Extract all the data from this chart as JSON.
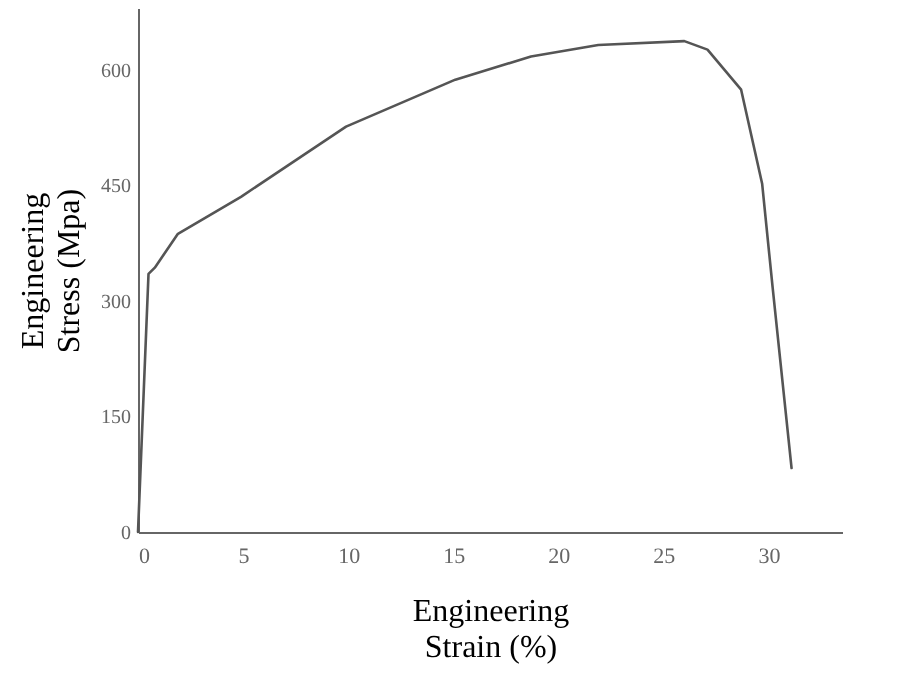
{
  "chart_data": {
    "type": "line",
    "xlabel": "Engineering Strain (%)",
    "ylabel": "Engineering Stress (Mpa)",
    "xlim": [
      0,
      33.5
    ],
    "ylim": [
      0,
      680
    ],
    "xticks": [
      0,
      5,
      10,
      15,
      20,
      25,
      30
    ],
    "yticks": [
      0,
      150,
      300,
      450,
      600
    ],
    "grid": false,
    "marker": "none",
    "line_style": "solid",
    "series": [
      {
        "color": "#555555",
        "x": [
          0,
          0.5,
          0.8,
          1.9,
          4.9,
          9.9,
          15.1,
          18.7,
          21.9,
          26,
          27.1,
          28.7,
          29.7,
          30.2,
          31.1
        ],
        "values": [
          0,
          335,
          343,
          387,
          435,
          526,
          587,
          617,
          632,
          637,
          626,
          574,
          452,
          317,
          83
        ]
      }
    ]
  }
}
